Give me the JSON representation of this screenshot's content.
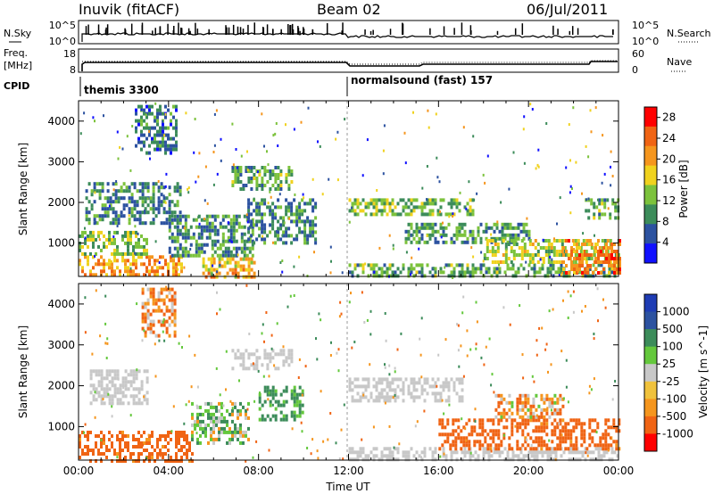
{
  "header": {
    "station": "Inuvik (fitACF)",
    "beam": "Beam 02",
    "date": "06/Jul/2011"
  },
  "panels": {
    "nsky": {
      "left_label": "N.Sky",
      "right_label": "N.Search",
      "left_ticks": [
        "10^5",
        "10^0"
      ],
      "right_ticks": [
        "10^5",
        "10^0"
      ]
    },
    "freq": {
      "left_label_1": "Freq.",
      "left_label_2": "[MHz]",
      "left_ticks": [
        "18",
        "8"
      ],
      "right_label": "Nave",
      "right_ticks": [
        "60",
        "0"
      ]
    },
    "cpid": {
      "label": "CPID",
      "modes": [
        {
          "name": "themis 3300",
          "start_hour": 0
        },
        {
          "name": "normalsound (fast) 157",
          "start_hour": 12
        }
      ]
    }
  },
  "colors": {
    "power": [
      "#1010ff",
      "#2c52a0",
      "#3c8c5a",
      "#7cc23c",
      "#f0d21e",
      "#f5961e",
      "#f06414",
      "#ff0000"
    ],
    "velocity": [
      "#ff0000",
      "#f06414",
      "#f5961e",
      "#f0c23c",
      "#c8c8c8",
      "#64c83c",
      "#3c8c5a",
      "#2c52a0",
      "#1e3cb4"
    ]
  },
  "chart_data": [
    {
      "type": "heatmap",
      "title": "Power",
      "ylabel": "Slant Range [km]",
      "ylim": [
        180,
        4500
      ],
      "y_ticks": [
        1000,
        2000,
        3000,
        4000
      ],
      "colorbar_label": "Power [dB]",
      "colorbar_ticks": [
        4,
        8,
        12,
        16,
        20,
        24,
        28
      ],
      "colorbar_range": [
        0,
        30
      ],
      "regions": [
        {
          "t0": 0.0,
          "t1": 4.6,
          "r0": 200,
          "r1": 700,
          "v": 22
        },
        {
          "t0": 0.0,
          "t1": 3.0,
          "r0": 750,
          "r1": 1300,
          "v": 14
        },
        {
          "t0": 0.3,
          "t1": 4.5,
          "r0": 1500,
          "r1": 2500,
          "v": 9
        },
        {
          "t0": 2.5,
          "t1": 4.3,
          "r0": 3200,
          "r1": 4400,
          "v": 8
        },
        {
          "t0": 4.0,
          "t1": 7.8,
          "r0": 700,
          "r1": 1700,
          "v": 10
        },
        {
          "t0": 5.5,
          "t1": 7.8,
          "r0": 200,
          "r1": 650,
          "v": 20
        },
        {
          "t0": 6.8,
          "t1": 9.5,
          "r0": 2300,
          "r1": 2900,
          "v": 12
        },
        {
          "t0": 7.5,
          "t1": 10.5,
          "r0": 1000,
          "r1": 2100,
          "v": 9
        },
        {
          "t0": 12.0,
          "t1": 17.5,
          "r0": 1700,
          "r1": 2100,
          "v": 14
        },
        {
          "t0": 12.0,
          "t1": 24.0,
          "r0": 200,
          "r1": 500,
          "v": 12
        },
        {
          "t0": 14.5,
          "t1": 20.0,
          "r0": 1000,
          "r1": 1500,
          "v": 11
        },
        {
          "t0": 18.0,
          "t1": 24.0,
          "r0": 550,
          "r1": 1100,
          "v": 16
        },
        {
          "t0": 21.5,
          "t1": 24.0,
          "r0": 300,
          "r1": 1100,
          "v": 24
        },
        {
          "t0": 22.5,
          "t1": 24.0,
          "r0": 1600,
          "r1": 2100,
          "v": 12
        }
      ]
    },
    {
      "type": "heatmap",
      "title": "Velocity",
      "ylabel": "Slant Range [km]",
      "xlabel": "Time UT",
      "ylim": [
        180,
        4500
      ],
      "y_ticks": [
        1000,
        2000,
        3000,
        4000
      ],
      "x_ticks": [
        "00:00",
        "04:00",
        "08:00",
        "12:00",
        "16:00",
        "20:00",
        "00:00"
      ],
      "colorbar_label": "Velocity [m s^-1]",
      "colorbar_ticks": [
        "1000",
        "500",
        "100",
        "25",
        "-25",
        "-100",
        "-500",
        "-1000"
      ],
      "regions": [
        {
          "t0": 0.0,
          "t1": 5.0,
          "r0": 200,
          "r1": 900,
          "v": -200
        },
        {
          "t0": 0.5,
          "t1": 3.0,
          "r0": 1600,
          "r1": 2400,
          "v": 0
        },
        {
          "t0": 2.8,
          "t1": 4.3,
          "r0": 3200,
          "r1": 4400,
          "v": -100
        },
        {
          "t0": 5.0,
          "t1": 7.5,
          "r0": 600,
          "r1": 1600,
          "v": 50
        },
        {
          "t0": 6.8,
          "t1": 9.5,
          "r0": 2400,
          "r1": 2900,
          "v": 0
        },
        {
          "t0": 8.0,
          "t1": 10.0,
          "r0": 1200,
          "r1": 2000,
          "v": 150
        },
        {
          "t0": 12.0,
          "t1": 17.0,
          "r0": 1600,
          "r1": 2200,
          "v": 0
        },
        {
          "t0": 12.0,
          "t1": 24.0,
          "r0": 200,
          "r1": 500,
          "v": 0
        },
        {
          "t0": 16.0,
          "t1": 24.0,
          "r0": 500,
          "r1": 1200,
          "v": -200
        },
        {
          "t0": 18.5,
          "t1": 21.5,
          "r0": 1200,
          "r1": 1800,
          "v": -60
        }
      ]
    }
  ]
}
